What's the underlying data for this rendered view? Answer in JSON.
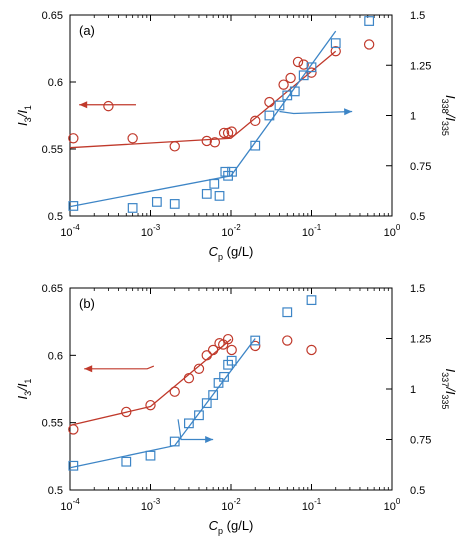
{
  "colors": {
    "red": "#c0392b",
    "blue": "#3d85c6",
    "axis": "#000000"
  },
  "chart_data": [
    {
      "type": "scatter",
      "panel_label": "(a)",
      "xscale": "log",
      "xlabel": {
        "main": "C",
        "sub": "p",
        "unit": " (g/L)"
      },
      "xlim": [
        0.0001,
        1
      ],
      "xticks": [
        0.0001,
        0.001,
        0.01,
        0.1,
        1
      ],
      "xtick_labels": [
        {
          "base": "10",
          "exp": "-4"
        },
        {
          "base": "10",
          "exp": "-3"
        },
        {
          "base": "10",
          "exp": "-2"
        },
        {
          "base": "10",
          "exp": "-1"
        },
        {
          "base": "10",
          "exp": "0"
        }
      ],
      "ylim_left": [
        0.5,
        0.65
      ],
      "yticks_left": [
        "0.5",
        "0.55",
        "0.6",
        "0.65"
      ],
      "ylabel_left": {
        "a": "I",
        "a_sub": "3",
        "b": "/I",
        "b_sub": "1"
      },
      "ylim_right": [
        0.5,
        1.5
      ],
      "yticks_right": [
        "0.5",
        "0.75",
        "1",
        "1.25",
        "1.5"
      ],
      "ylabel_right": {
        "a": "I",
        "a_sub": "338",
        "b": "/I",
        "b_sub": "335"
      },
      "series": [
        {
          "marker": "circle",
          "axis": "left",
          "color": "red",
          "x": [
            0.00011,
            0.0003,
            0.0006,
            0.002,
            0.005,
            0.0063,
            0.0082,
            0.0092,
            0.0102,
            0.02,
            0.03,
            0.045,
            0.055,
            0.068,
            0.08,
            0.1,
            0.2,
            0.52
          ],
          "y": [
            0.558,
            0.582,
            0.558,
            0.552,
            0.556,
            0.555,
            0.562,
            0.562,
            0.563,
            0.571,
            0.585,
            0.598,
            0.603,
            0.615,
            0.613,
            0.607,
            0.623,
            0.628
          ],
          "fit_x": [
            0.0001,
            0.01,
            0.2
          ],
          "fit_y": [
            0.551,
            0.558,
            0.623
          ]
        },
        {
          "marker": "square",
          "axis": "right",
          "color": "blue",
          "x": [
            0.00011,
            0.0006,
            0.0012,
            0.002,
            0.005,
            0.0062,
            0.0072,
            0.0085,
            0.0092,
            0.0103,
            0.02,
            0.03,
            0.04,
            0.05,
            0.062,
            0.08,
            0.1,
            0.2,
            0.52
          ],
          "y": [
            0.55,
            0.54,
            0.57,
            0.56,
            0.61,
            0.66,
            0.6,
            0.72,
            0.7,
            0.72,
            0.85,
            1.0,
            1.05,
            1.1,
            1.12,
            1.2,
            1.24,
            1.36,
            1.47
          ],
          "fit_x": [
            0.0001,
            0.01,
            0.2
          ],
          "fit_y": [
            0.547,
            0.7,
            1.42
          ]
        }
      ],
      "arrows": [
        {
          "target": "left",
          "color": "red",
          "tail": [
            0.00066,
            0.583
          ],
          "bend": [
            0.00057,
            0.583
          ],
          "head": [
            0.00013,
            0.583
          ]
        },
        {
          "target": "right",
          "color": "blue",
          "tail": [
            0.04,
            1.02
          ],
          "bend": [
            0.06,
            1.01
          ],
          "head": [
            0.32,
            1.02
          ]
        }
      ]
    },
    {
      "type": "scatter",
      "panel_label": "(b)",
      "xscale": "log",
      "xlabel": {
        "main": "C",
        "sub": "p",
        "unit": " (g/L)"
      },
      "xlim": [
        0.0001,
        1
      ],
      "xticks": [
        0.0001,
        0.001,
        0.01,
        0.1,
        1
      ],
      "xtick_labels": [
        {
          "base": "10",
          "exp": "-4"
        },
        {
          "base": "10",
          "exp": "-3"
        },
        {
          "base": "10",
          "exp": "-2"
        },
        {
          "base": "10",
          "exp": "-1"
        },
        {
          "base": "10",
          "exp": "0"
        }
      ],
      "ylim_left": [
        0.5,
        0.65
      ],
      "yticks_left": [
        "0.5",
        "0.55",
        "0.6",
        "0.65"
      ],
      "ylabel_left": {
        "a": "I",
        "a_sub": "3",
        "b": "/I",
        "b_sub": "1"
      },
      "ylim_right": [
        0.5,
        1.5
      ],
      "yticks_right": [
        "0.5",
        "0.75",
        "1",
        "1.25",
        "1.5"
      ],
      "ylabel_right": {
        "a": "I",
        "a_sub": "337",
        "b": "/I",
        "b_sub": "335"
      },
      "series": [
        {
          "marker": "circle",
          "axis": "left",
          "color": "red",
          "x": [
            0.00011,
            0.0005,
            0.001,
            0.002,
            0.003,
            0.004,
            0.005,
            0.006,
            0.0072,
            0.008,
            0.0092,
            0.0102,
            0.02,
            0.05,
            0.1
          ],
          "y": [
            0.545,
            0.558,
            0.563,
            0.573,
            0.583,
            0.59,
            0.6,
            0.604,
            0.609,
            0.608,
            0.612,
            0.604,
            0.607,
            0.611,
            0.604
          ],
          "fit_x": [
            0.0001,
            0.001,
            0.01
          ],
          "fit_y": [
            0.548,
            0.562,
            0.612
          ]
        },
        {
          "marker": "square",
          "axis": "right",
          "color": "blue",
          "x": [
            0.00011,
            0.0005,
            0.001,
            0.002,
            0.003,
            0.004,
            0.005,
            0.006,
            0.007,
            0.0082,
            0.0092,
            0.0102,
            0.02,
            0.05,
            0.1
          ],
          "y": [
            0.62,
            0.64,
            0.67,
            0.74,
            0.83,
            0.87,
            0.93,
            0.97,
            1.03,
            1.06,
            1.12,
            1.14,
            1.24,
            1.38,
            1.44
          ],
          "fit_x": [
            0.0001,
            0.002,
            0.02
          ],
          "fit_y": [
            0.61,
            0.72,
            1.25
          ]
        }
      ],
      "arrows": [
        {
          "target": "left",
          "color": "red",
          "tail": [
            0.0011,
            0.592
          ],
          "bend": [
            0.00091,
            0.59
          ],
          "head": [
            0.00015,
            0.59
          ]
        },
        {
          "target": "right",
          "color": "blue",
          "tail": [
            0.0022,
            0.85
          ],
          "bend": [
            0.0024,
            0.75
          ],
          "head": [
            0.006,
            0.75
          ]
        }
      ]
    }
  ]
}
